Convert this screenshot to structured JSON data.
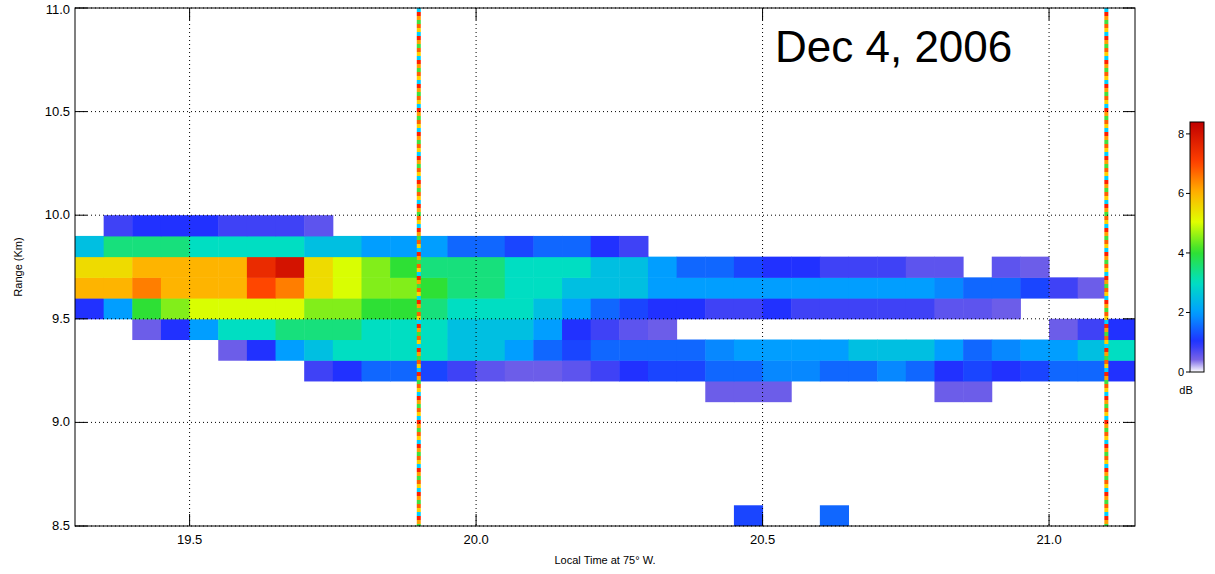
{
  "chart_data": {
    "type": "heatmap",
    "annotation": "Dec 4, 2006",
    "x_label": "Local Time at 75° W.",
    "y_label": "Range (Km)",
    "xlim": [
      19.3,
      21.15
    ],
    "xticks": [
      19.5,
      {
        "value": 20,
        "label": "20.0"
      },
      20.5,
      {
        "value": 21,
        "label": "21.0"
      }
    ],
    "ylim": [
      8.5,
      11
    ],
    "yticks": [
      8.5,
      {
        "value": 9,
        "label": "9.0"
      },
      9.5,
      {
        "value": 10,
        "label": "10.0"
      },
      10.5,
      {
        "value": 11,
        "label": "11.0"
      }
    ],
    "grid": true,
    "x_bins": [
      19.3,
      19.35,
      19.4,
      19.45,
      19.5,
      19.55,
      19.6,
      19.65,
      19.7,
      19.75,
      19.8,
      19.85,
      19.9,
      19.95,
      20.0,
      20.05,
      20.1,
      20.15,
      20.2,
      20.25,
      20.3,
      20.35,
      20.4,
      20.45,
      20.5,
      20.55,
      20.6,
      20.65,
      20.7,
      20.75,
      20.8,
      20.85,
      20.9,
      20.95,
      21.0,
      21.05,
      21.1,
      21.15
    ],
    "y_bins": [
      8.5,
      8.6,
      8.7,
      8.8,
      8.9,
      9.0,
      9.1,
      9.2,
      9.3,
      9.4,
      9.5,
      9.6,
      9.7,
      9.8,
      9.9,
      10.0
    ],
    "values": [
      [
        null,
        null,
        null,
        null,
        null,
        null,
        null,
        null,
        null,
        null,
        null,
        null,
        null,
        null,
        null,
        null,
        null,
        null,
        null,
        null,
        null,
        null,
        null,
        1.2,
        null,
        null,
        1.5,
        null,
        null,
        null,
        null,
        null,
        null,
        null,
        null,
        null,
        null
      ],
      [
        null,
        null,
        null,
        null,
        null,
        null,
        null,
        null,
        null,
        null,
        null,
        null,
        null,
        null,
        null,
        null,
        null,
        null,
        null,
        null,
        null,
        null,
        null,
        null,
        null,
        null,
        null,
        null,
        null,
        null,
        null,
        null,
        null,
        null,
        null,
        null,
        null
      ],
      [
        null,
        null,
        null,
        null,
        null,
        null,
        null,
        null,
        null,
        null,
        null,
        null,
        null,
        null,
        null,
        null,
        null,
        null,
        null,
        null,
        null,
        null,
        null,
        null,
        null,
        null,
        null,
        null,
        null,
        null,
        null,
        null,
        null,
        null,
        null,
        null,
        null
      ],
      [
        null,
        null,
        null,
        null,
        null,
        null,
        null,
        null,
        null,
        null,
        null,
        null,
        null,
        null,
        null,
        null,
        null,
        null,
        null,
        null,
        null,
        null,
        null,
        null,
        null,
        null,
        null,
        null,
        null,
        null,
        null,
        null,
        null,
        null,
        null,
        null,
        null
      ],
      [
        null,
        null,
        null,
        null,
        null,
        null,
        null,
        null,
        null,
        null,
        null,
        null,
        null,
        null,
        null,
        null,
        null,
        null,
        null,
        null,
        null,
        null,
        null,
        null,
        null,
        null,
        null,
        null,
        null,
        null,
        null,
        null,
        null,
        null,
        null,
        null,
        null
      ],
      [
        null,
        null,
        null,
        null,
        null,
        null,
        null,
        null,
        null,
        null,
        null,
        null,
        null,
        null,
        null,
        null,
        null,
        null,
        null,
        null,
        null,
        null,
        null,
        null,
        null,
        null,
        null,
        null,
        null,
        null,
        null,
        null,
        null,
        null,
        null,
        null,
        null
      ],
      [
        null,
        null,
        null,
        null,
        null,
        null,
        null,
        null,
        null,
        null,
        null,
        null,
        null,
        null,
        null,
        null,
        null,
        null,
        null,
        null,
        null,
        null,
        0.5,
        0.5,
        0.5,
        null,
        null,
        null,
        null,
        null,
        0.5,
        0.5,
        null,
        null,
        null,
        null,
        null
      ],
      [
        null,
        null,
        null,
        null,
        null,
        null,
        null,
        null,
        0.8,
        1,
        1.5,
        1.5,
        1.2,
        0.8,
        0.6,
        0.5,
        0.5,
        0.6,
        0.8,
        1,
        1.2,
        1.2,
        1.5,
        1.5,
        1.8,
        1.8,
        1.5,
        1.5,
        1.8,
        1.5,
        1,
        1.2,
        1,
        1.2,
        1.5,
        1.5,
        1
      ],
      [
        null,
        null,
        null,
        null,
        null,
        0.5,
        1,
        2,
        2.5,
        3,
        3,
        3,
        3,
        2.5,
        2.5,
        2,
        1.5,
        1.2,
        1.5,
        1.5,
        1.5,
        1.5,
        1.8,
        2,
        2,
        2,
        2,
        2.5,
        2.5,
        2.5,
        2,
        1.5,
        1.8,
        2,
        2,
        2.5,
        3
      ],
      [
        null,
        null,
        0.5,
        1,
        2,
        3,
        3,
        3.5,
        3.5,
        3.5,
        3,
        3,
        3,
        2.5,
        2.5,
        2.5,
        2,
        1,
        0.8,
        0.6,
        0.5,
        null,
        null,
        null,
        null,
        null,
        null,
        null,
        null,
        null,
        null,
        null,
        null,
        null,
        0.5,
        0.8,
        1
      ],
      [
        1,
        2,
        4,
        4.5,
        5,
        5,
        5,
        5,
        4.5,
        4.5,
        4,
        4,
        3.5,
        3,
        3,
        3,
        2.5,
        2,
        1.5,
        1.2,
        1,
        1,
        0.8,
        0.8,
        1,
        0.8,
        0.8,
        0.8,
        0.8,
        0.8,
        0.6,
        0.6,
        0.5,
        null,
        null,
        null,
        null
      ],
      [
        6,
        6,
        6.5,
        6,
        6,
        6,
        7,
        6.5,
        5.5,
        5,
        4.5,
        4.5,
        4,
        3.5,
        3.5,
        3,
        3,
        2.5,
        2.5,
        2.5,
        2,
        2,
        2,
        2,
        2,
        2,
        2,
        2,
        2,
        2,
        1.8,
        1.5,
        1.5,
        1.2,
        0.8,
        0.5,
        null
      ],
      [
        5.5,
        5.5,
        6,
        6,
        6,
        6,
        7.5,
        8,
        5.5,
        5,
        4.5,
        4,
        3.5,
        3.5,
        3.5,
        3,
        3,
        3,
        2.5,
        2.5,
        2,
        1.5,
        1.5,
        1.2,
        1,
        1,
        0.8,
        0.8,
        0.8,
        0.6,
        0.6,
        null,
        0.6,
        0.5,
        null,
        null,
        null
      ],
      [
        2.5,
        3.5,
        3.5,
        3.5,
        3,
        3,
        3,
        3,
        2.5,
        2.5,
        2,
        2,
        2,
        1.5,
        1.5,
        1.2,
        1.5,
        1.5,
        1,
        0.8,
        null,
        null,
        null,
        null,
        null,
        null,
        null,
        null,
        null,
        null,
        null,
        null,
        null,
        null,
        null,
        null,
        null
      ],
      [
        null,
        0.8,
        1,
        1,
        1,
        0.8,
        0.8,
        0.8,
        0.6,
        null,
        null,
        null,
        null,
        null,
        null,
        null,
        null,
        null,
        null,
        null,
        null,
        null,
        null,
        null,
        null,
        null,
        null,
        null,
        null,
        null,
        null,
        null,
        null,
        null,
        null,
        null,
        null
      ]
    ],
    "colorbar": {
      "label": "dB",
      "range": [
        0,
        8.4
      ],
      "ticks": [
        0,
        2,
        4,
        6,
        8
      ]
    },
    "stripes": [
      19.9,
      21.1
    ]
  }
}
